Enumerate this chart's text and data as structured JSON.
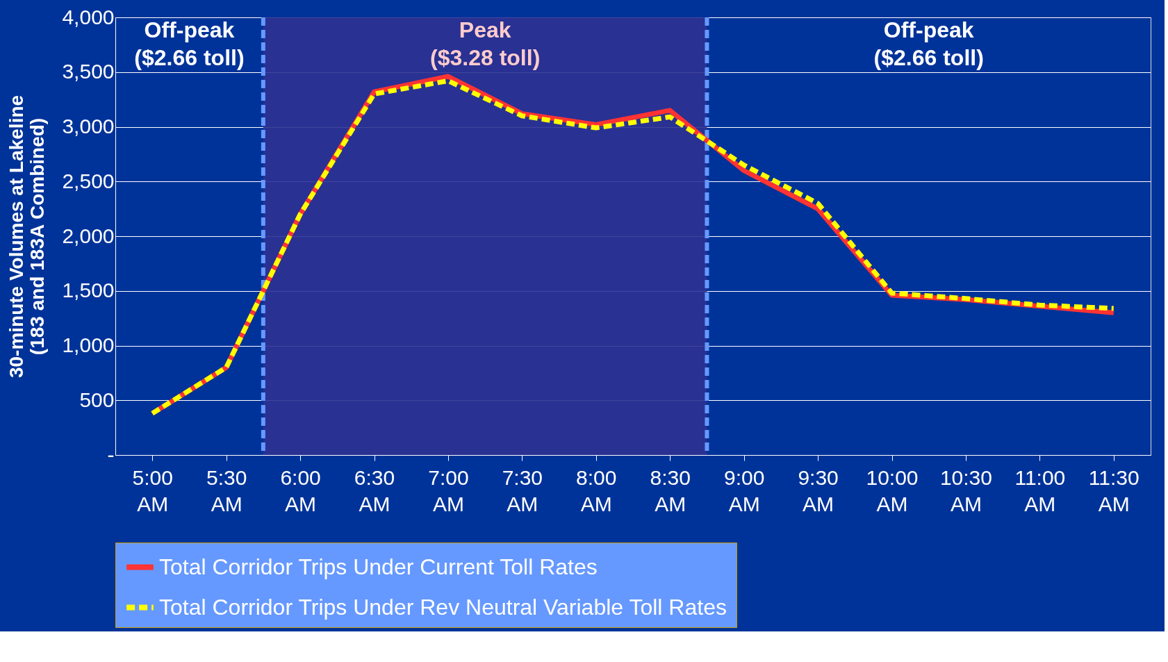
{
  "chart_data": {
    "type": "line",
    "ylabel": "30-minute Volumes at Lakeline\n(183 and 183A Combined)",
    "x": [
      5,
      5.5,
      6,
      6.5,
      7,
      7.5,
      8,
      8.5,
      9,
      9.5,
      10,
      10.5,
      11,
      11.5
    ],
    "xlim": [
      4.75,
      11.75
    ],
    "xticks": [
      {
        "value": 5,
        "label": "5:00 AM"
      },
      {
        "value": 5.5,
        "label": "5:30 AM"
      },
      {
        "value": 6,
        "label": "6:00 AM"
      },
      {
        "value": 6.5,
        "label": "6:30 AM"
      },
      {
        "value": 7,
        "label": "7:00 AM"
      },
      {
        "value": 7.5,
        "label": "7:30 AM"
      },
      {
        "value": 8,
        "label": "8:00 AM"
      },
      {
        "value": 8.5,
        "label": "8:30 AM"
      },
      {
        "value": 9,
        "label": "9:00 AM"
      },
      {
        "value": 9.5,
        "label": "9:30 AM"
      },
      {
        "value": 10,
        "label": "10:00 AM"
      },
      {
        "value": 10.5,
        "label": "10:30 AM"
      },
      {
        "value": 11,
        "label": "11:00 AM"
      },
      {
        "value": 11.5,
        "label": "11:30 AM"
      }
    ],
    "ylim": [
      0,
      4000
    ],
    "yticks": [
      {
        "value": 0,
        "label": "-"
      },
      500,
      {
        "value": 1000,
        "label": "1,000"
      },
      {
        "value": 1500,
        "label": "1,500"
      },
      {
        "value": 2000,
        "label": "2,000"
      },
      {
        "value": 2500,
        "label": "2,500"
      },
      {
        "value": 3000,
        "label": "3,000"
      },
      {
        "value": 3500,
        "label": "3,500"
      },
      {
        "value": 4000,
        "label": "4,000"
      }
    ],
    "series": [
      {
        "name": "Total Corridor Trips Under Current Toll Rates",
        "color": "#ff3333",
        "line_style": "solid",
        "values": [
          380,
          800,
          2200,
          3320,
          3460,
          3120,
          3020,
          3150,
          2600,
          2250,
          1460,
          1420,
          1360,
          1300
        ]
      },
      {
        "name": "Total Corridor Trips Under Rev Neutral Variable Toll Rates",
        "color": "#ffff00",
        "line_style": "dashed",
        "values": [
          380,
          800,
          2200,
          3300,
          3420,
          3100,
          2990,
          3090,
          2650,
          2300,
          1480,
          1430,
          1370,
          1340
        ]
      }
    ],
    "bands": [
      {
        "axis": "x",
        "from": 5.75,
        "to": 8.75,
        "label": "Peak\n($3.28 toll)",
        "color": "#2e3192"
      }
    ],
    "ref_lines": [
      {
        "axis": "x",
        "value": 5.75,
        "color": "#6699ff",
        "line_style": "dashed"
      },
      {
        "axis": "x",
        "value": 8.75,
        "color": "#6699ff",
        "line_style": "dashed"
      }
    ],
    "annotations": [
      "Off-peak\n($2.66 toll)",
      "Off-peak\n($2.66 toll)"
    ],
    "grid": "y",
    "legend": "bottom",
    "marker": "none"
  }
}
